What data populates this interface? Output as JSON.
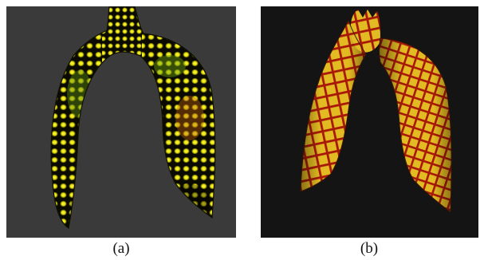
{
  "figure": {
    "panels": [
      {
        "id": "a",
        "caption": "(a)",
        "background_color": "#3a3a3a",
        "surface_colors": [
          "#0a0a00",
          "#f2ee10",
          "#7a9a10",
          "#d08010"
        ],
        "rendering": "mesh-shaded-dots"
      },
      {
        "id": "b",
        "caption": "(b)",
        "background_color": "#141414",
        "surface_colors": [
          "#e8c020",
          "#a81808"
        ],
        "rendering": "mesh-grid-lines"
      }
    ]
  }
}
